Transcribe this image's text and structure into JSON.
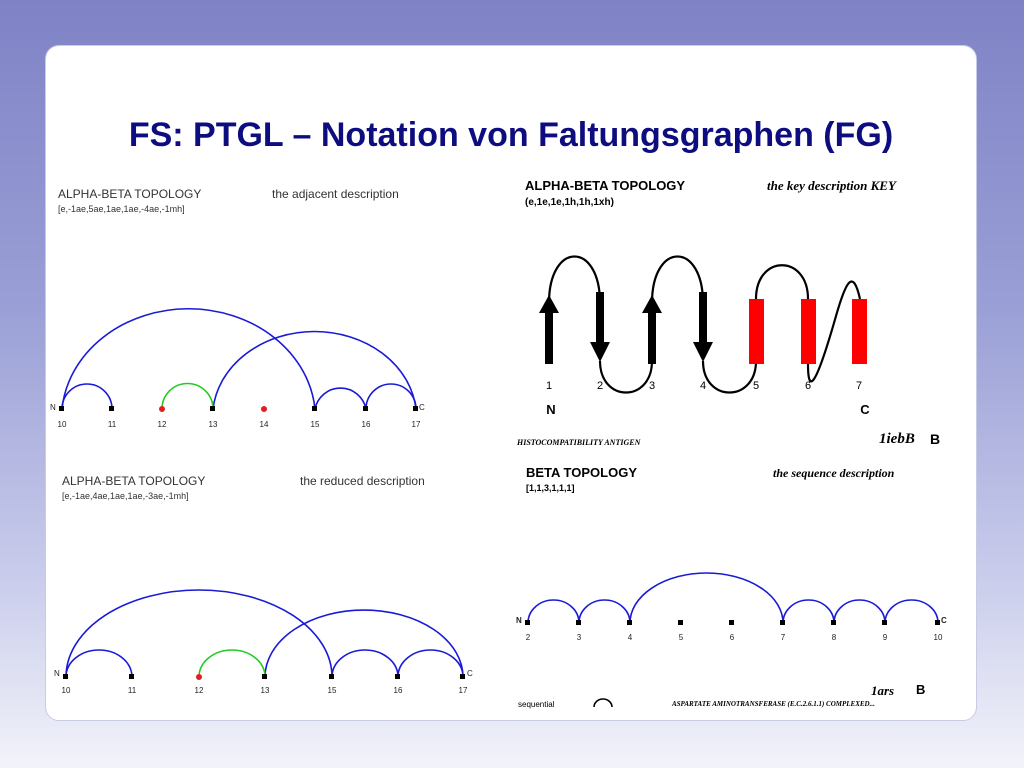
{
  "slide": {
    "title": "FS: PTGL – Notation von Faltungsgraphen (FG)"
  },
  "adjacent": {
    "topology": "ALPHA-BETA  TOPOLOGY",
    "notation": "[e,-1ae,5ae,1ae,1ae,-4ae,-1mh]",
    "description": "the adjacent description",
    "n_label": "N",
    "c_label": "C",
    "nodes": [
      "10",
      "11",
      "12",
      "13",
      "14",
      "15",
      "16",
      "17"
    ]
  },
  "reduced": {
    "topology": "ALPHA-BETA  TOPOLOGY",
    "notation": "[e,-1ae,4ae,1ae,1ae,-3ae,-1mh]",
    "description": "the reduced description",
    "n_label": "N",
    "c_label": "C",
    "nodes": [
      "10",
      "11",
      "12",
      "13",
      "15",
      "16",
      "17"
    ]
  },
  "key": {
    "topology": "ALPHA-BETA  TOPOLOGY",
    "notation": "(e,1e,1e,1h,1h,1xh)",
    "description": "the key  description    KEY",
    "nodes": [
      "1",
      "2",
      "3",
      "4",
      "5",
      "6",
      "7"
    ],
    "n_label": "N",
    "c_label": "C",
    "protein": "HISTOCOMPATIBILITY ANTIGEN",
    "pdb": "1iebB",
    "chain": "B",
    "colors": {
      "strand": "#000000",
      "helix": "#ff0000"
    }
  },
  "sequence": {
    "topology": "BETA  TOPOLOGY",
    "notation": "[1,1,3,1,1,1]",
    "description": "the sequence description",
    "n_label": "N",
    "c_label": "C",
    "nodes": [
      "2",
      "3",
      "4",
      "5",
      "6",
      "7",
      "8",
      "9",
      "10"
    ],
    "pdb": "1ars",
    "chain": "B",
    "legend": "sequential",
    "protein": "ASPARTATE AMINOTRANSFERASE (E.C.2.6.1.1) COMPLEXED..."
  },
  "colors": {
    "title": "#0d0d80",
    "arc_blue": "#1a1ad6",
    "arc_green": "#22cc22",
    "red_node": "#e02020"
  }
}
